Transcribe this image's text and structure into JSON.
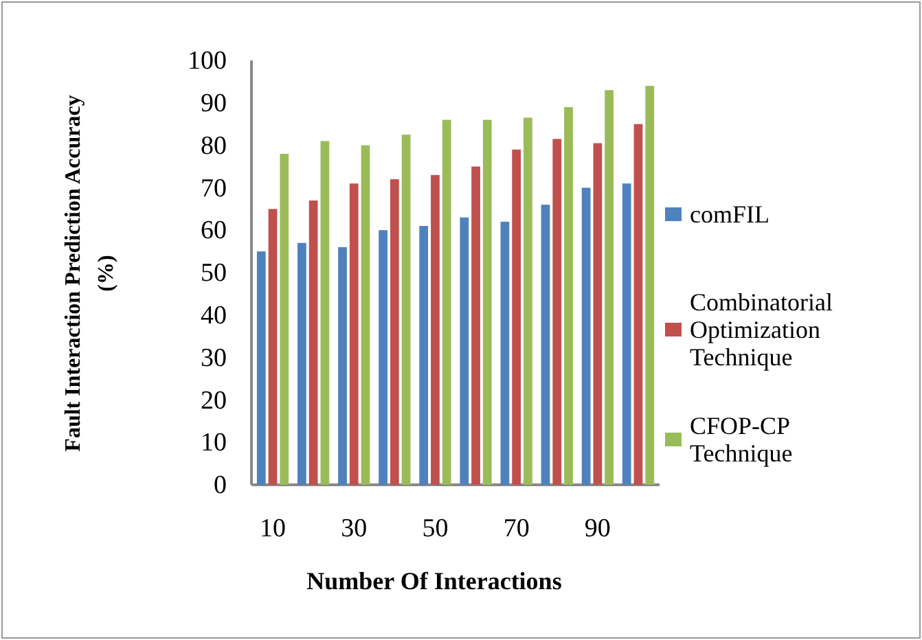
{
  "chart_data": {
    "type": "bar",
    "xlabel": "Number Of Interactions",
    "ylabel": "Fault Interaction Prediction Accuracy (%)",
    "categories": [
      "10",
      null,
      "30",
      null,
      "50",
      null,
      "70",
      null,
      "90",
      null
    ],
    "series": [
      {
        "name": "comFIL",
        "color": "#4f81bd",
        "values": [
          55,
          57,
          56,
          60,
          61,
          63,
          62,
          66,
          70,
          71
        ]
      },
      {
        "name": "Combinatorial Optimization Technique",
        "color": "#c0504d",
        "values": [
          65,
          67,
          71,
          72,
          73,
          75,
          79,
          81.5,
          80.5,
          85
        ]
      },
      {
        "name": "CFOP-CP Technique",
        "color": "#9bbb59",
        "values": [
          78,
          81,
          80,
          82.5,
          86,
          86,
          86.5,
          89,
          93,
          94
        ]
      }
    ],
    "ylim": [
      0,
      100
    ],
    "yticks": [
      0,
      10,
      20,
      30,
      40,
      50,
      60,
      70,
      80,
      90,
      100
    ],
    "grid": false,
    "legend": "right"
  }
}
